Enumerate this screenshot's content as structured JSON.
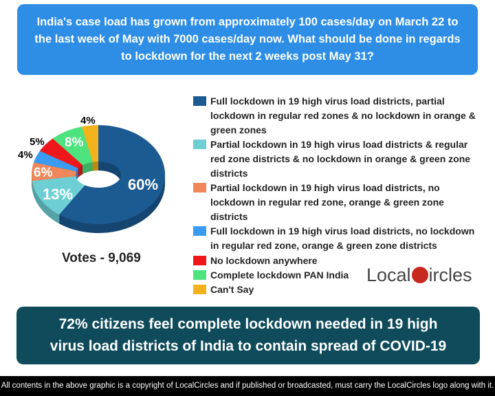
{
  "question": "India's case load has grown from approximately 100 cases/day on March 22 to the last week of May with 7000 cases/day now. What should be done in regards to lockdown for the next 2 weeks post May 31?",
  "chart_data": {
    "type": "pie",
    "style": "3d-donut",
    "categories": [
      "Full lockdown in 19 high virus load districts, partial lockdown in regular red zones & no lockdown in orange & green zones",
      "Partial lockdown in 19 high virus load districts & regular red zone districts & no lockdown in orange & green zone districts",
      "Partial lockdown in 19 high virus load districts, no lockdown in regular red zone, orange & green zone districts",
      "Full lockdown in 19 high virus load districts, no lockdown in regular red zone, orange & green zone districts",
      "No lockdown anywhere",
      "Complete lockdown PAN India",
      "Can't Say"
    ],
    "values": [
      60,
      13,
      6,
      4,
      5,
      8,
      4
    ],
    "labels": [
      "60%",
      "13%",
      "6%",
      "4%",
      "5%",
      "8%",
      "4%"
    ],
    "colors": [
      "#1c5a92",
      "#6dcfd4",
      "#f0875a",
      "#3a9bf0",
      "#f0171c",
      "#4de37e",
      "#f2b21c"
    ],
    "legend": "right"
  },
  "votes": "Votes - 9,069",
  "logo": {
    "left": "Local",
    "right": "ircles"
  },
  "conclusion": "72% citizens feel complete lockdown needed in 19 high virus load districts of India to contain spread of COVID-19",
  "footer": "All contents in the above graphic is a copyright of LocalCircles and if published or broadcasted, must carry the LocalCircles logo along with it."
}
